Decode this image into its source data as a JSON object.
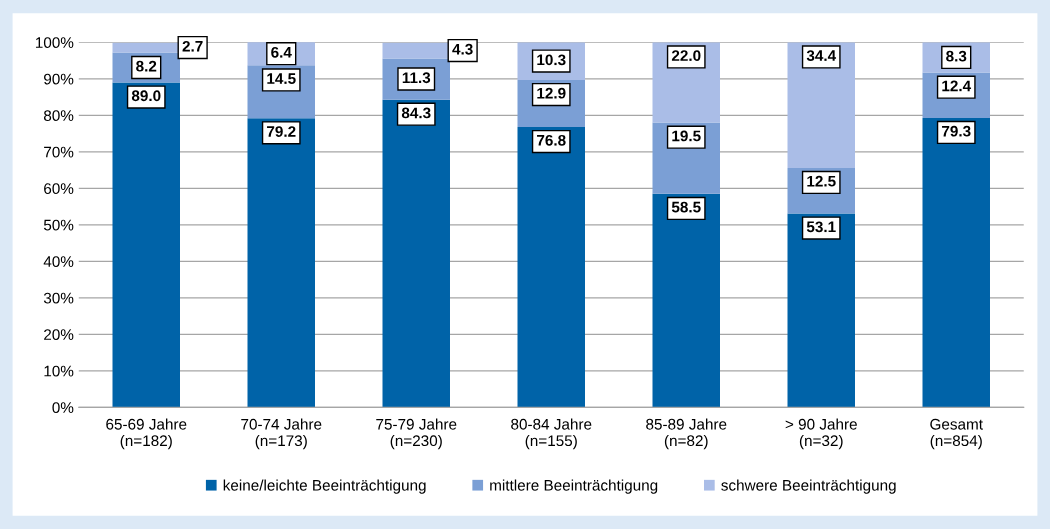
{
  "chart_data": {
    "type": "bar",
    "stacked": true,
    "categories": [
      "65-69 Jahre\n(n=182)",
      "70-74 Jahre\n(n=173)",
      "75-79 Jahre\n(n=230)",
      "80-84 Jahre\n(n=155)",
      "85-89 Jahre\n(n=82)",
      "> 90 Jahre\n(n=32)",
      "Gesamt\n(n=854)"
    ],
    "series": [
      {
        "name": "keine/leichte Beeinträchtigung",
        "color": "#0063a8",
        "values": [
          89.0,
          79.2,
          84.3,
          76.8,
          58.5,
          53.1,
          79.3
        ],
        "value_labels": [
          "89.0",
          "79.2",
          "84.3",
          "76.8",
          "58.5",
          "53.1",
          "79.3"
        ]
      },
      {
        "name": "mittlere Beeinträchtigung",
        "color": "#7b9fd5",
        "values": [
          8.2,
          14.5,
          11.3,
          12.9,
          19.5,
          12.5,
          12.4
        ],
        "value_labels": [
          "8.2",
          "14.5",
          "11.3",
          "12.9",
          "19.5",
          "12.5",
          "12.4"
        ]
      },
      {
        "name": "schwere Beeinträchtigung",
        "color": "#aabde7",
        "values": [
          2.7,
          6.4,
          4.3,
          10.3,
          22.0,
          34.4,
          8.3
        ],
        "value_labels": [
          "2.7",
          "6.4",
          "4.3",
          "10.3",
          "22.0",
          "34.4",
          "8.3"
        ]
      }
    ],
    "ylim": [
      0,
      100
    ],
    "yticks": [
      {
        "value": 0,
        "label": "0%"
      },
      {
        "value": 10,
        "label": "10%"
      },
      {
        "value": 20,
        "label": "20%"
      },
      {
        "value": 30,
        "label": "30%"
      },
      {
        "value": 40,
        "label": "40%"
      },
      {
        "value": 50,
        "label": "50%"
      },
      {
        "value": 60,
        "label": "60%"
      },
      {
        "value": 70,
        "label": "70%"
      },
      {
        "value": 80,
        "label": "80%"
      },
      {
        "value": 90,
        "label": "90%"
      },
      {
        "value": 100,
        "label": "100%"
      }
    ],
    "grid": "y",
    "legend": "bottom"
  }
}
